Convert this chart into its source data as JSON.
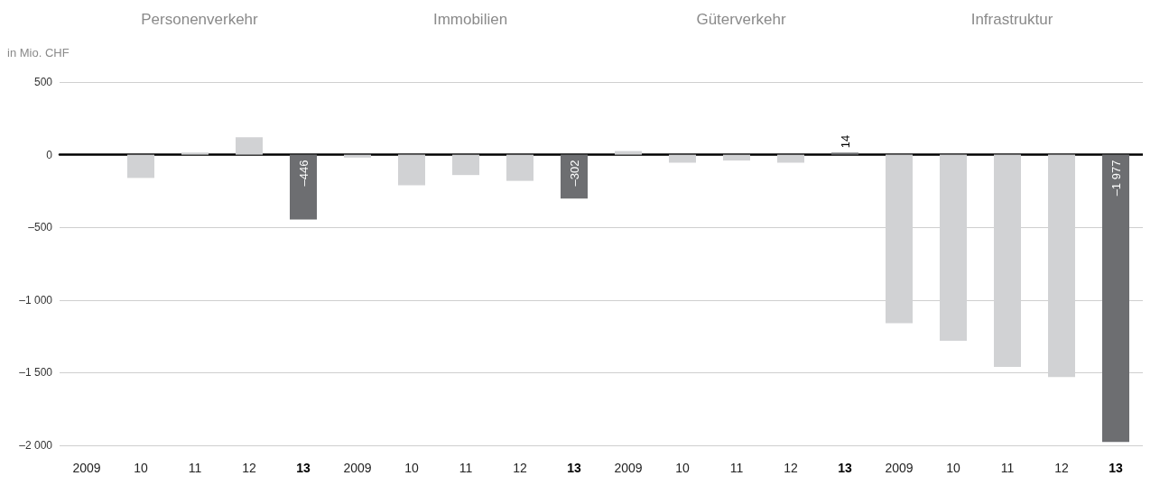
{
  "chart_data": [
    {
      "type": "bar",
      "title": "Personenverkehr",
      "ylabel": "in Mio. CHF",
      "categories": [
        "2009",
        "10",
        "11",
        "12",
        "13"
      ],
      "values": [
        null,
        -160,
        15,
        120,
        -446
      ],
      "colors": [
        "#d1d2d4",
        "#d1d2d4",
        "#d1d2d4",
        "#d1d2d4",
        "#6d6e71"
      ],
      "value_labels": [
        null,
        null,
        null,
        null,
        "–446"
      ],
      "ylim": [
        -2000,
        500
      ],
      "yticks": [
        {
          "value": -2000,
          "label": "–2 000"
        },
        {
          "value": -1500,
          "label": "–1 500"
        },
        {
          "value": -1000,
          "label": "–1 000"
        },
        {
          "value": -500,
          "label": "–500"
        },
        0,
        500
      ],
      "grid": "y"
    },
    {
      "type": "bar",
      "title": "Immobilien",
      "categories": [
        "2009",
        "10",
        "11",
        "12",
        "13"
      ],
      "values": [
        -20,
        -210,
        -140,
        -180,
        -302
      ],
      "colors": [
        "#d1d2d4",
        "#d1d2d4",
        "#d1d2d4",
        "#d1d2d4",
        "#6d6e71"
      ],
      "value_labels": [
        null,
        null,
        null,
        null,
        "–302"
      ],
      "ylim": [
        -2000,
        500
      ],
      "yticks": [
        -2000,
        -1500,
        -1000,
        -500,
        0,
        500
      ],
      "grid": "y",
      "tick_labels": "x"
    },
    {
      "type": "bar",
      "title": "Güterverkehr",
      "categories": [
        "2009",
        "10",
        "11",
        "12",
        "13"
      ],
      "values": [
        25,
        -55,
        -40,
        -55,
        14
      ],
      "colors": [
        "#d1d2d4",
        "#d1d2d4",
        "#d1d2d4",
        "#d1d2d4",
        "#6d6e71"
      ],
      "value_labels": [
        null,
        null,
        null,
        null,
        "14"
      ],
      "ylim": [
        -2000,
        500
      ],
      "yticks": [
        -2000,
        -1500,
        -1000,
        -500,
        0,
        500
      ],
      "grid": "y",
      "tick_labels": "x"
    },
    {
      "type": "bar",
      "title": "Infrastruktur",
      "categories": [
        "2009",
        "10",
        "11",
        "12",
        "13"
      ],
      "values": [
        -1160,
        -1280,
        -1460,
        -1530,
        -1977
      ],
      "colors": [
        "#d1d2d4",
        "#d1d2d4",
        "#d1d2d4",
        "#d1d2d4",
        "#6d6e71"
      ],
      "value_labels": [
        null,
        null,
        null,
        null,
        "–1 977"
      ],
      "ylim": [
        -2000,
        500
      ],
      "yticks": [
        -2000,
        -1500,
        -1000,
        -500,
        0,
        500
      ],
      "grid": "y",
      "tick_labels": "x"
    }
  ]
}
